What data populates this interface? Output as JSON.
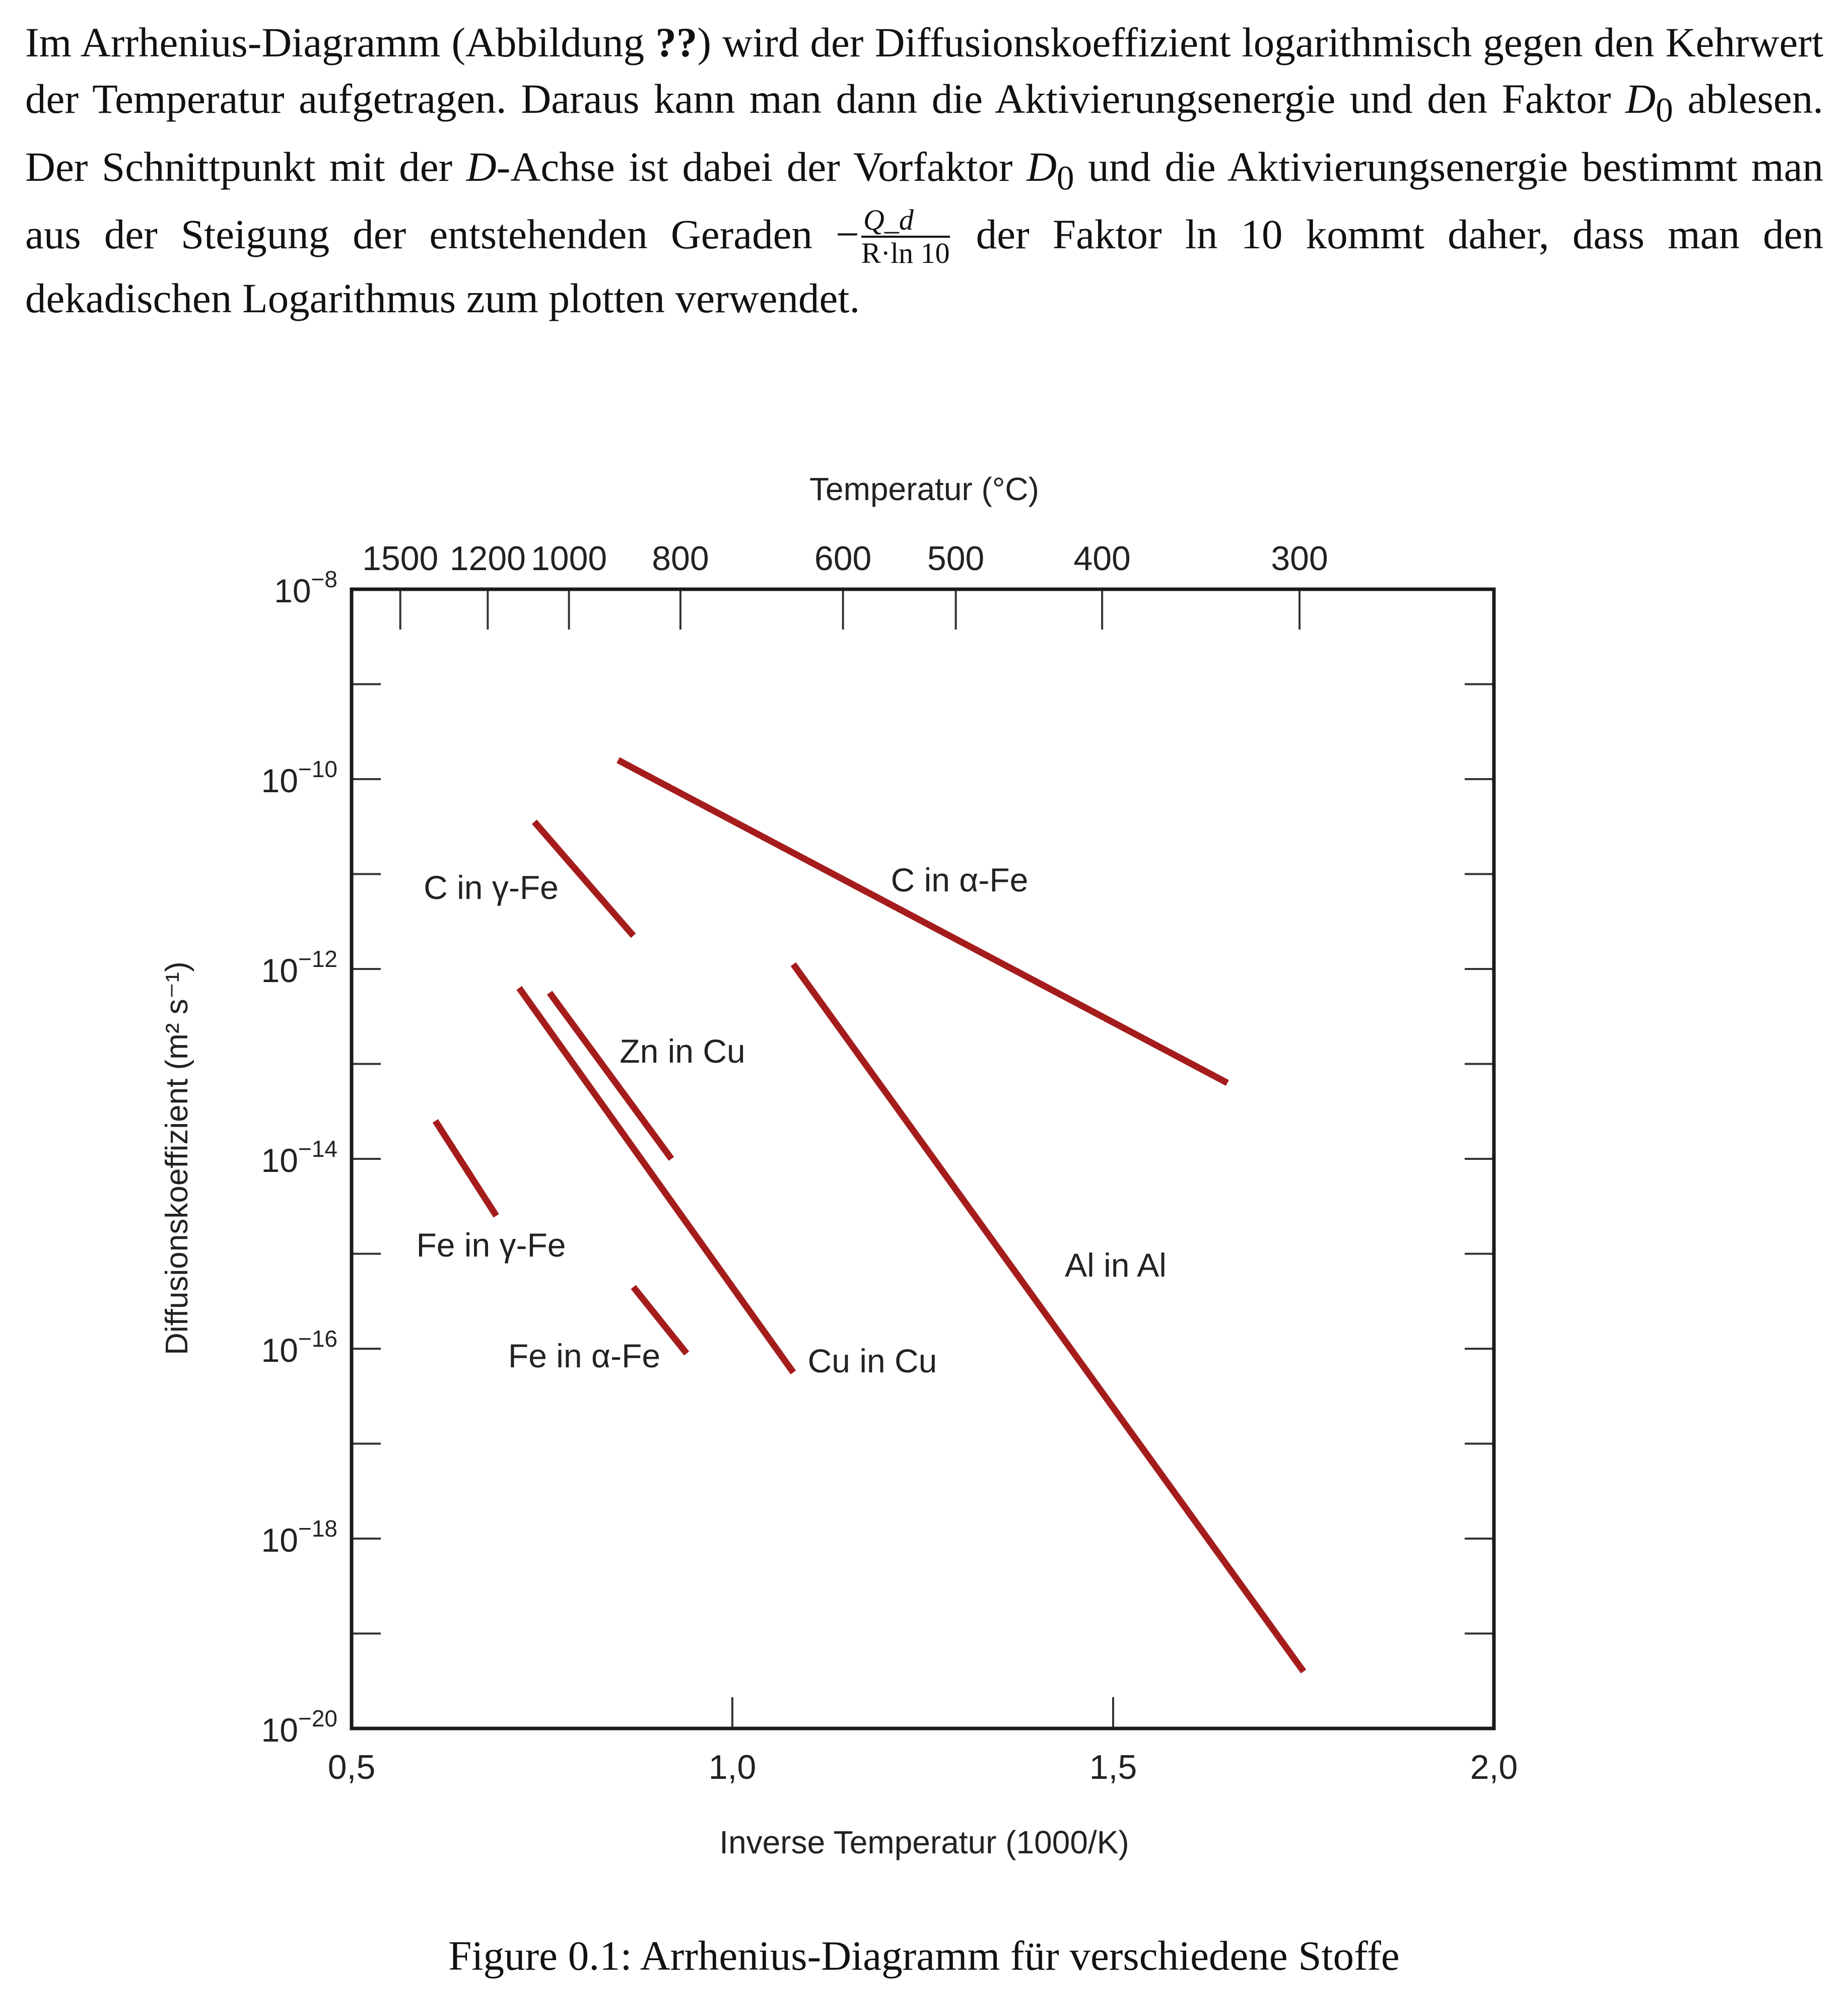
{
  "paragraph": {
    "part1": "Im Arrhenius-Diagramm (Abbildung ",
    "ref": "??",
    "part2": ") wird der Diffusionskoeffizient logarithmisch gegen den Kehrwert der Temperatur aufgetragen. Daraus kann man dann die Aktivierungsenergie und den Faktor ",
    "d0_a": "D",
    "d0_sub_a": "0",
    "part3": " ablesen. Der Schnittpunkt mit der ",
    "d_axis": "D",
    "part4": "-Achse ist dabei der Vorfaktor ",
    "d0_b": "D",
    "d0_sub_b": "0",
    "part5": " und die Aktivierungsenergie bestimmt man aus der Steigung der entstehenden Geraden ",
    "minus": "−",
    "frac_num": "Q_d",
    "frac_den": "R·ln 10",
    "part6": " der Faktor ln 10 kommt daher, dass man den dekadischen Logarithmus zum plotten verwendet."
  },
  "caption": "Figure 0.1: Arrhenius-Diagramm für verschiedene Stoffe",
  "chart_data": {
    "type": "line",
    "title": "",
    "xlabel": "Inverse Temperatur (1000/K)",
    "ylabel": "Diffusionskoeffizient (m² s⁻¹)",
    "top_xlabel": "Temperatur (°C)",
    "xlim": [
      0.5,
      2.0
    ],
    "ylim_log10": [
      -20,
      -8
    ],
    "y_scale": "log",
    "grid": false,
    "x_ticks": [
      {
        "value": 0.5,
        "label": "0,5"
      },
      {
        "value": 1.0,
        "label": "1,0"
      },
      {
        "value": 1.5,
        "label": "1,5"
      },
      {
        "value": 2.0,
        "label": "2,0"
      }
    ],
    "y_ticks": [
      {
        "exp": -8,
        "label": "10",
        "sup": "−8"
      },
      {
        "exp": -10,
        "label": "10",
        "sup": "−10"
      },
      {
        "exp": -12,
        "label": "10",
        "sup": "−12"
      },
      {
        "exp": -14,
        "label": "10",
        "sup": "−14"
      },
      {
        "exp": -16,
        "label": "10",
        "sup": "−16"
      },
      {
        "exp": -18,
        "label": "10",
        "sup": "−18"
      },
      {
        "exp": -20,
        "label": "10",
        "sup": "−20"
      }
    ],
    "top_ticks": [
      {
        "label": "1500",
        "celsius": 1500
      },
      {
        "label": "1200",
        "celsius": 1200
      },
      {
        "label": "1000",
        "celsius": 1000
      },
      {
        "label": "800",
        "celsius": 800
      },
      {
        "label": "600",
        "celsius": 600
      },
      {
        "label": "500",
        "celsius": 500
      },
      {
        "label": "400",
        "celsius": 400
      },
      {
        "label": "300",
        "celsius": 300
      }
    ],
    "series_color": "#a51c1c",
    "series": [
      {
        "name": "C in α-Fe",
        "x": [
          0.85,
          1.65
        ],
        "y_log10": [
          -9.8,
          -13.2
        ]
      },
      {
        "name": "C in γ-Fe",
        "x": [
          0.74,
          0.87
        ],
        "y_log10": [
          -10.45,
          -11.65
        ]
      },
      {
        "name": "Zn in Cu",
        "x": [
          0.76,
          0.92
        ],
        "y_log10": [
          -12.25,
          -14.0
        ]
      },
      {
        "name": "Cu in Cu",
        "x": [
          0.72,
          1.08
        ],
        "y_log10": [
          -12.2,
          -16.25
        ]
      },
      {
        "name": "Al in Al",
        "x": [
          1.08,
          1.75
        ],
        "y_log10": [
          -11.95,
          -19.4
        ]
      },
      {
        "name": "Fe in γ-Fe",
        "x": [
          0.61,
          0.69
        ],
        "y_log10": [
          -13.6,
          -14.6
        ]
      },
      {
        "name": "Fe in α-Fe",
        "x": [
          0.87,
          0.94
        ],
        "y_log10": [
          -15.35,
          -16.05
        ]
      }
    ]
  }
}
